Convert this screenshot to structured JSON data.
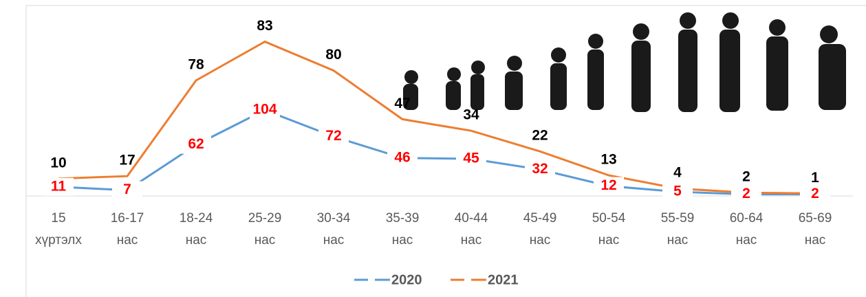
{
  "chart_data": {
    "type": "line",
    "stacked": true,
    "categories": [
      "15 хүртэлх",
      "16-17 нас",
      "18-24 нас",
      "25-29 нас",
      "30-34 нас",
      "35-39 нас",
      "40-44 нас",
      "45-49 нас",
      "50-54 нас",
      "55-59 нас",
      "60-64 нас",
      "65-69 нас"
    ],
    "series": [
      {
        "name": "2020",
        "color": "#5b9bd5",
        "label_color": "#ff0000",
        "values": [
          11,
          7,
          62,
          104,
          72,
          46,
          45,
          32,
          12,
          5,
          2,
          2
        ]
      },
      {
        "name": "2021",
        "color": "#ed7d31",
        "label_color": "#000000",
        "values": [
          10,
          17,
          78,
          83,
          80,
          47,
          34,
          22,
          13,
          4,
          2,
          1
        ]
      }
    ],
    "ylim": [
      0,
      200
    ],
    "legend": "bottom"
  }
}
